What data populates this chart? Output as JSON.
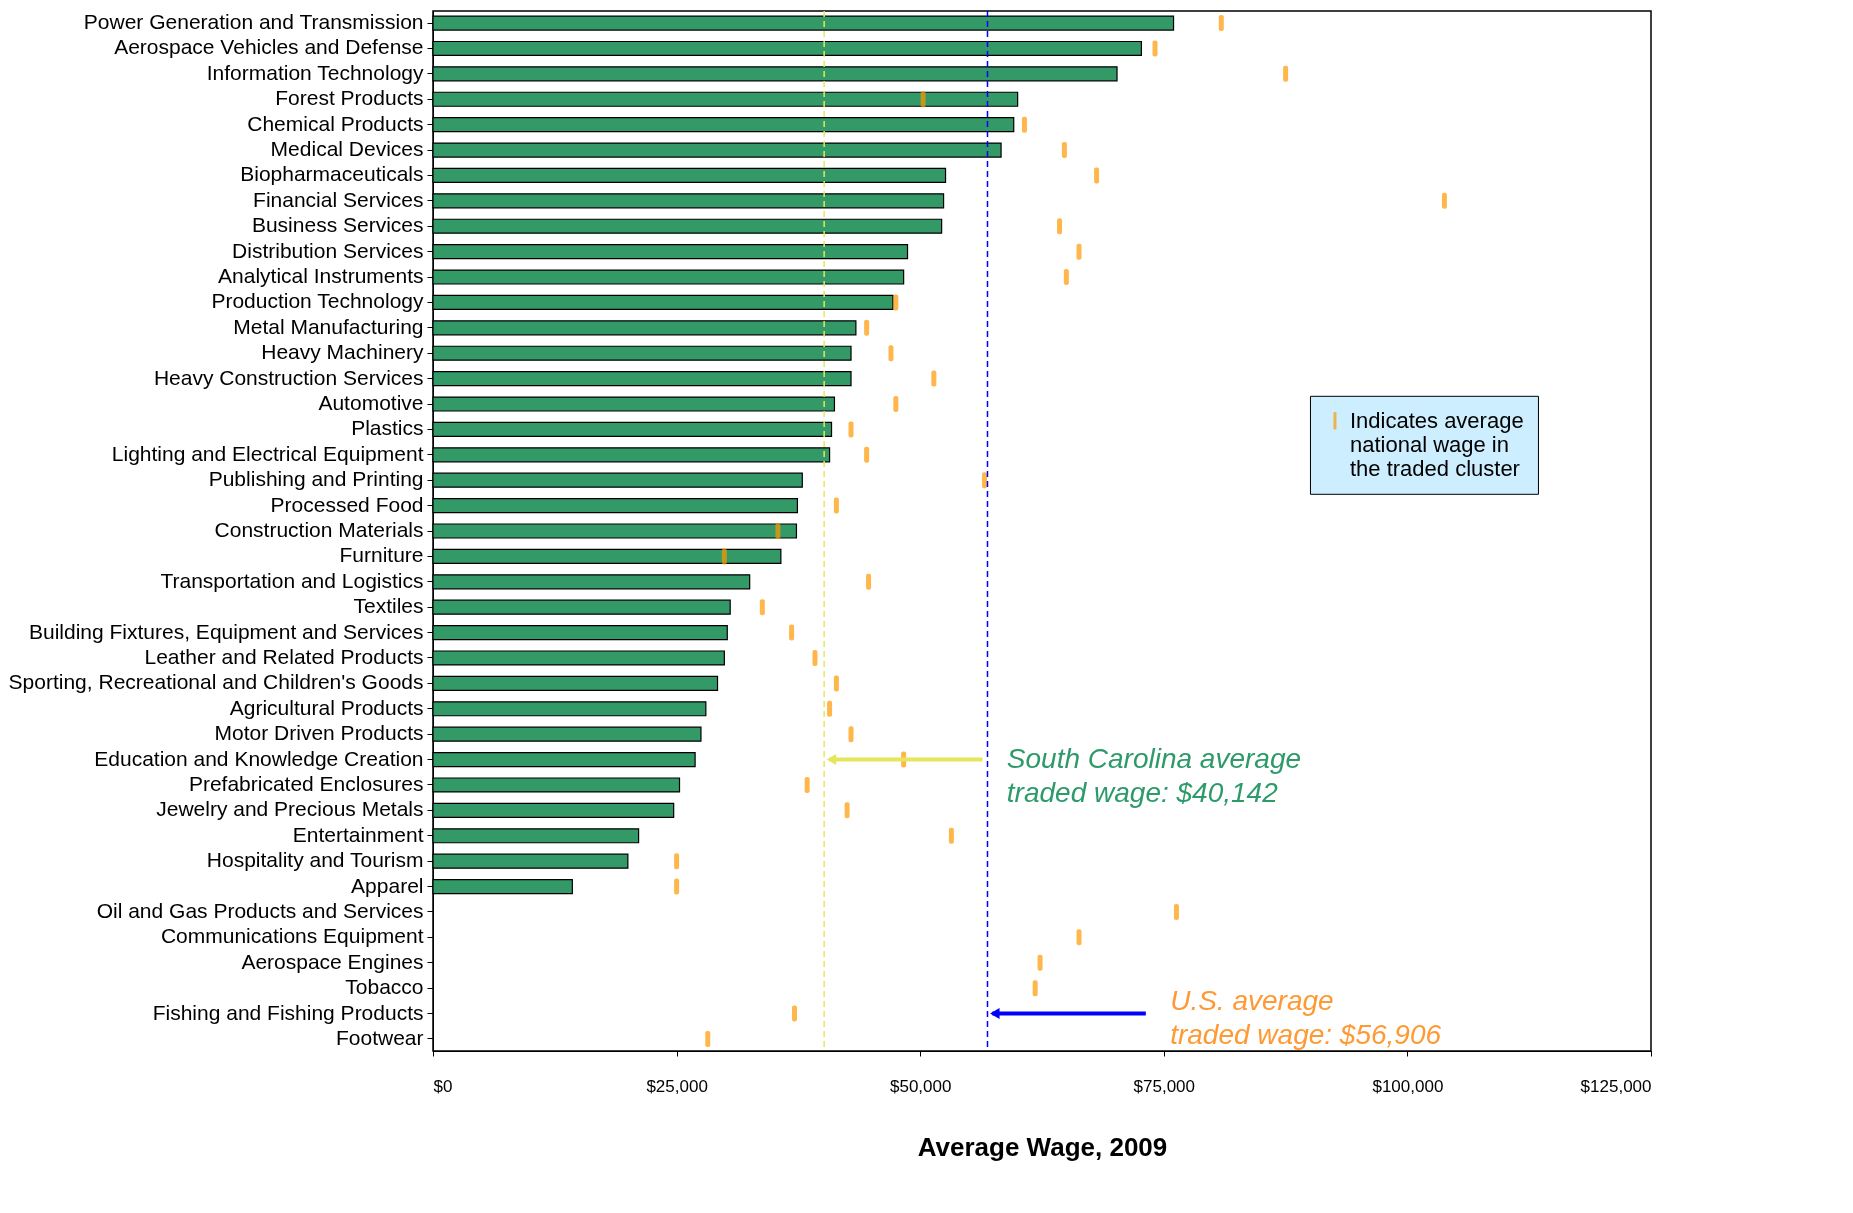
{
  "chart_data": {
    "type": "bar",
    "orientation": "horizontal",
    "xlabel": "Average Wage, 2009",
    "categories": [
      "Power Generation and Transmission",
      "Aerospace Vehicles and Defense",
      "Information Technology",
      "Forest Products",
      "Chemical Products",
      "Medical Devices",
      "Biopharmaceuticals",
      "Financial Services",
      "Business Services",
      "Distribution Services",
      "Analytical Instruments",
      "Production Technology",
      "Metal Manufacturing",
      "Heavy Machinery",
      "Heavy Construction Services",
      "Automotive",
      "Plastics",
      "Lighting and Electrical Equipment",
      "Publishing and Printing",
      "Processed Food",
      "Construction Materials",
      "Furniture",
      "Transportation and Logistics",
      "Textiles",
      "Building Fixtures, Equipment and Services",
      "Leather and Related Products",
      "Sporting, Recreational and Children's Goods",
      "Agricultural Products",
      "Motor Driven Products",
      "Education and Knowledge Creation",
      "Prefabricated Enclosures",
      "Jewelry and Precious Metals",
      "Entertainment",
      "Hospitality and Tourism",
      "Apparel",
      "Oil and Gas Products and Services",
      "Communications Equipment",
      "Aerospace Engines",
      "Tobacco",
      "Fishing and Fishing Products",
      "Footwear"
    ],
    "series": [
      {
        "color": "#339966",
        "values": [
          76000,
          72700,
          70200,
          60000,
          59600,
          58300,
          52600,
          52400,
          52200,
          48700,
          48300,
          47200,
          43400,
          42900,
          42900,
          41200,
          40900,
          40700,
          37900,
          37400,
          37300,
          35700,
          32500,
          30500,
          30200,
          29900,
          29200,
          28000,
          27500,
          26900,
          25300,
          24700,
          21100,
          20000,
          14300,
          null,
          null,
          null,
          null,
          null,
          null
        ]
      },
      {
        "type": "scatter",
        "name": "Indicates average\nnational wage in\nthe traded cluster",
        "color": "#ff9900",
        "x": [
          "Power Generation and Transmission",
          "Aerospace Vehicles and Defense",
          "Information Technology",
          "Forest Products",
          "Chemical Products",
          "Medical Devices",
          "Biopharmaceuticals",
          "Financial Services",
          "Business Services",
          "Distribution Services",
          "Analytical Instruments",
          "Production Technology",
          "Metal Manufacturing",
          "Heavy Machinery",
          "Heavy Construction Services",
          "Automotive",
          "Plastics",
          "Lighting and Electrical Equipment",
          "Publishing and Printing",
          "Processed Food",
          "Construction Materials",
          "Furniture",
          "Transportation and Logistics",
          "Textiles",
          "Building Fixtures, Equipment and Services",
          "Leather and Related Products",
          "Sporting, Recreational and Children's Goods",
          "Agricultural Products",
          "Motor Driven Products",
          "Education and Knowledge Creation",
          "Prefabricated Enclosures",
          "Jewelry and Precious Metals",
          "Entertainment",
          "Hospitality and Tourism",
          "Apparel",
          "Oil and Gas Products and Services",
          "Communications Equipment",
          "Aerospace Engines",
          "Tobacco",
          "Fishing and Fishing Products",
          "Footwear"
        ],
        "values": [
          80900,
          74100,
          87500,
          50300,
          60700,
          64800,
          68100,
          103800,
          64300,
          66300,
          65000,
          47500,
          44500,
          47000,
          51400,
          47500,
          42900,
          44500,
          56600,
          41400,
          35400,
          29900,
          44700,
          33800,
          36800,
          39200,
          41400,
          40700,
          42900,
          48300,
          38400,
          42500,
          53200,
          25000,
          25000,
          76300,
          66300,
          62300,
          61800,
          37100,
          28200
        ]
      }
    ],
    "xlim": [
      0,
      125000
    ],
    "xticks": [
      {
        "value": 0,
        "label": "$0"
      },
      {
        "value": 25000,
        "label": "$25,000"
      },
      {
        "value": 50000,
        "label": "$50,000"
      },
      {
        "value": 75000,
        "label": "$75,000"
      },
      {
        "value": 100000,
        "label": "$100,000"
      },
      {
        "value": 125000,
        "label": "$125,000"
      }
    ],
    "ref_lines": [
      {
        "axis": "x",
        "value": 40142,
        "label": "South Carolina average\ntraded wage: $40,142",
        "color": "#e6e65c",
        "line_style": "dashed"
      },
      {
        "axis": "x",
        "value": 56906,
        "label": "U.S. average\ntraded wage: $56,906",
        "color": "#0000ff",
        "line_style": "dashed"
      }
    ],
    "legend": "right"
  }
}
